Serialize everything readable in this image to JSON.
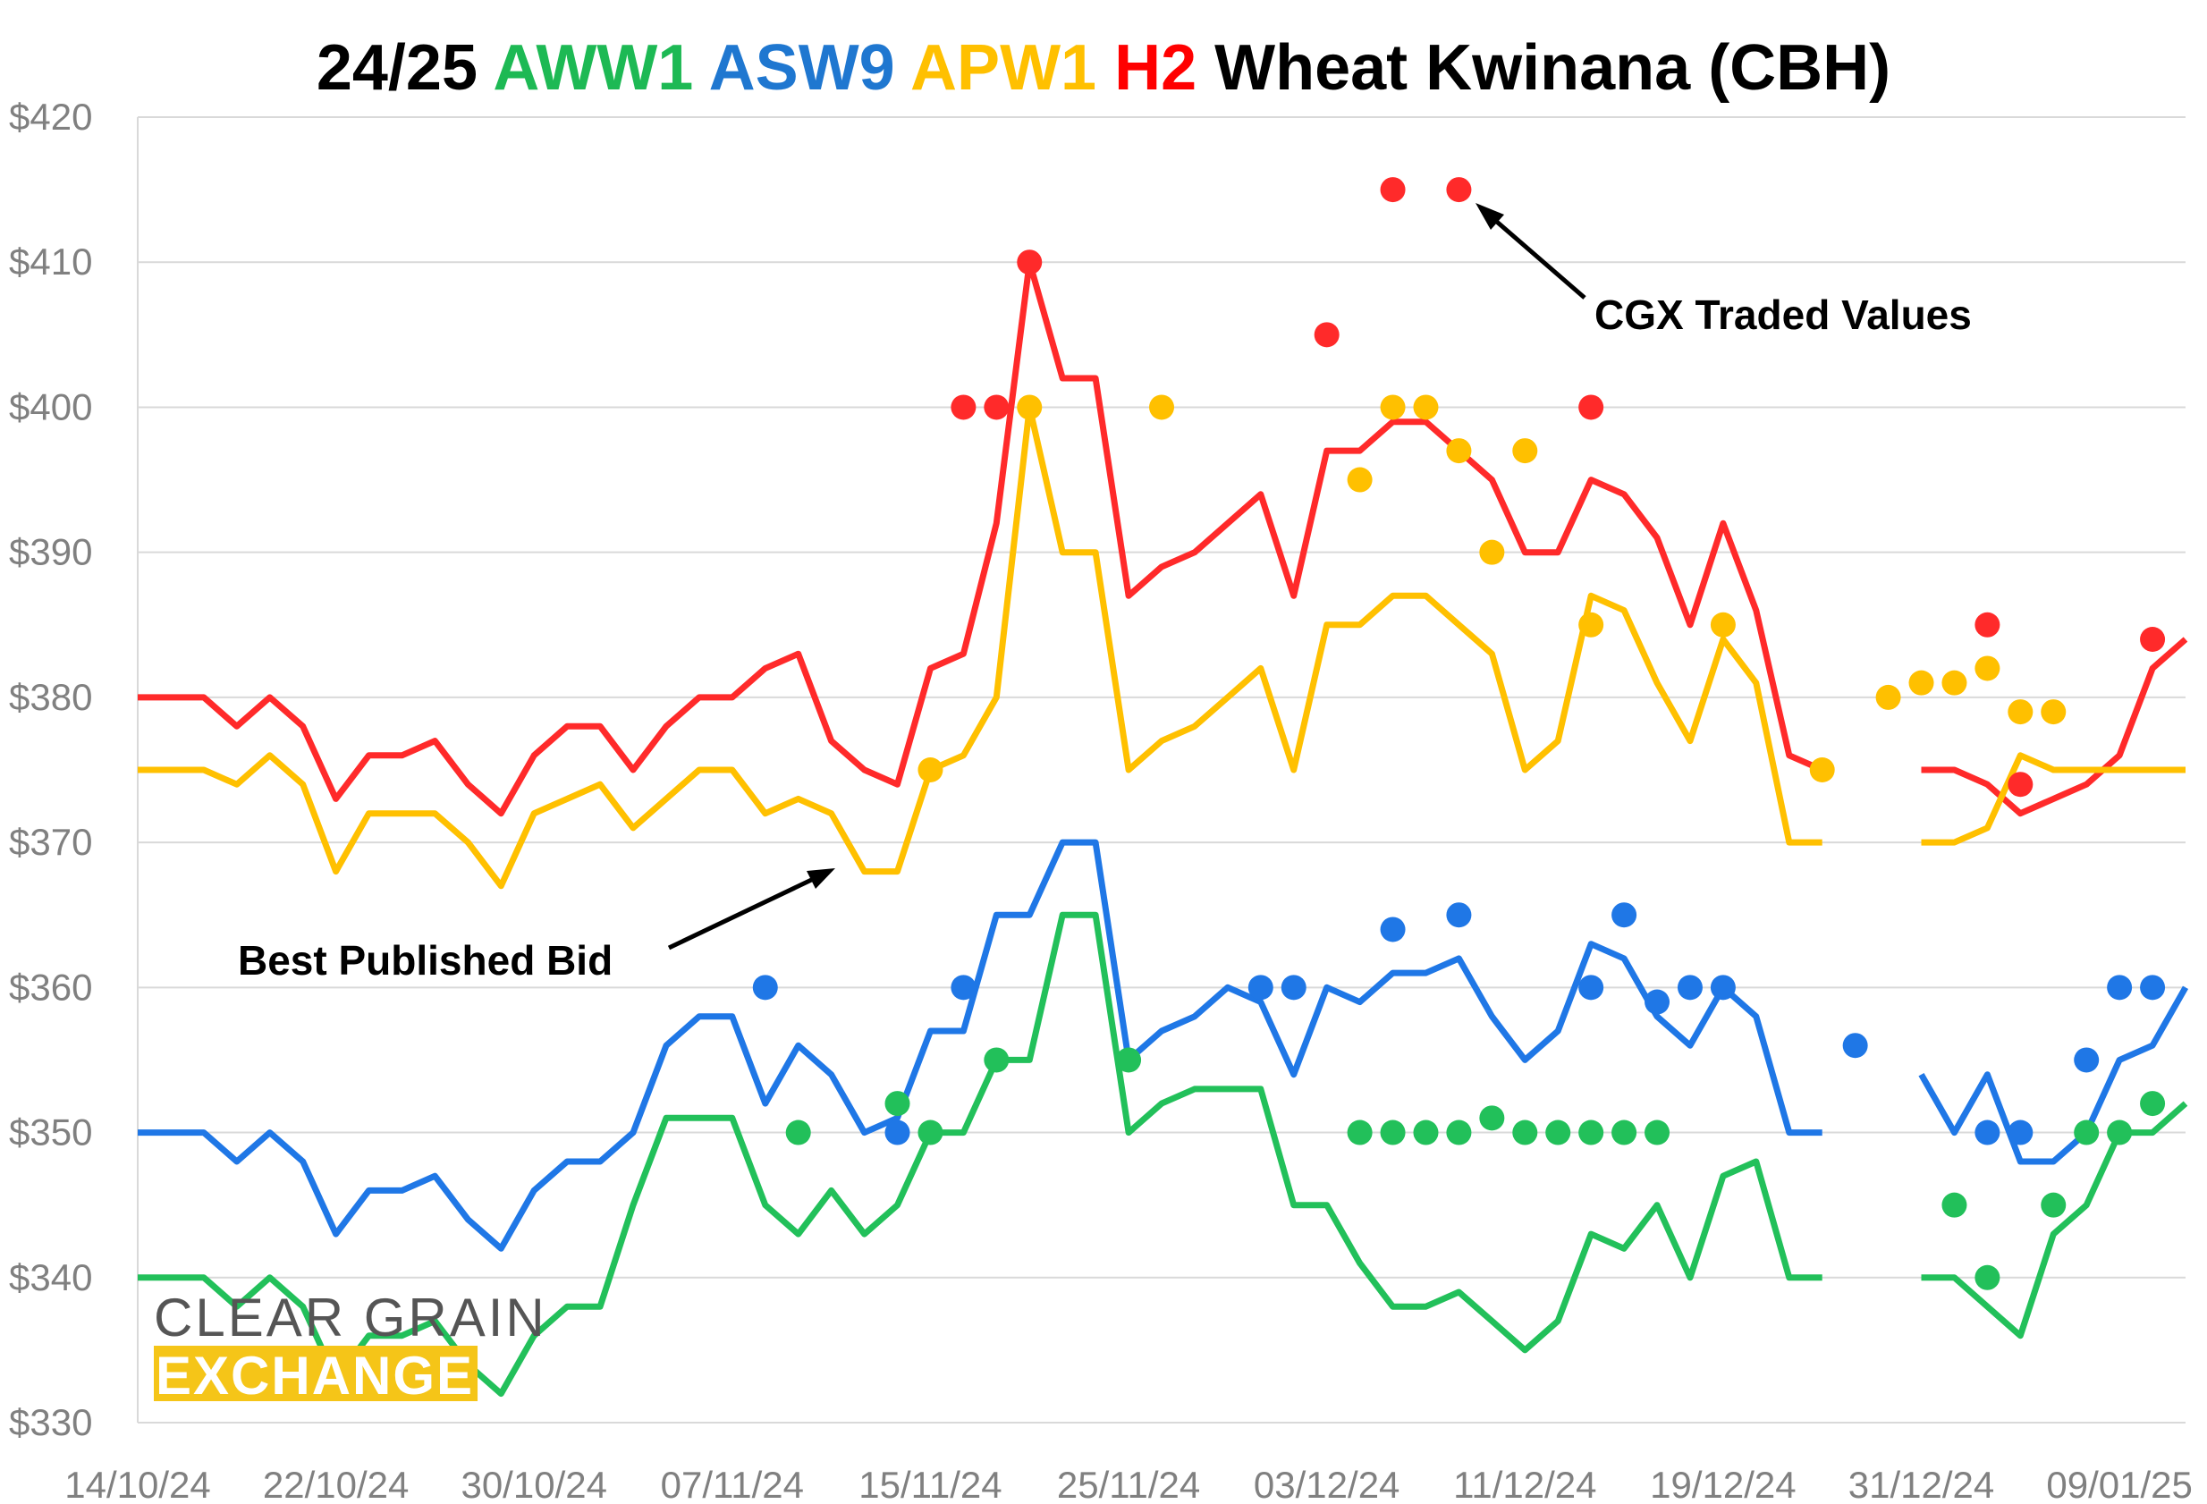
{
  "chart_data": {
    "type": "line",
    "title": {
      "segments": [
        {
          "text": "24/25 ",
          "color": "#000000"
        },
        {
          "text": "AWW1",
          "color": "#1db954"
        },
        {
          "text": " ",
          "color": "#000000"
        },
        {
          "text": "ASW9",
          "color": "#1f77d0"
        },
        {
          "text": " ",
          "color": "#000000"
        },
        {
          "text": "APW1",
          "color": "#ffc000"
        },
        {
          "text": " ",
          "color": "#000000"
        },
        {
          "text": "H2",
          "color": "#ff0000"
        },
        {
          "text": " Wheat Kwinana (CBH)",
          "color": "#000000"
        }
      ]
    },
    "y_axis": {
      "ylim": [
        330,
        420
      ],
      "ticks": [
        330,
        340,
        350,
        360,
        370,
        380,
        390,
        400,
        410,
        420
      ],
      "tick_labels": [
        "$330",
        "$340",
        "$350",
        "$360",
        "$370",
        "$380",
        "$390",
        "$400",
        "$410",
        "$420"
      ]
    },
    "x_axis": {
      "range": [
        0,
        62
      ],
      "tick_positions": [
        0,
        6,
        12,
        18,
        24,
        30,
        36,
        42,
        48,
        54,
        60
      ],
      "tick_labels": [
        "14/10/24",
        "22/10/24",
        "30/10/24",
        "07/11/24",
        "15/11/24",
        "25/11/24",
        "03/12/24",
        "11/12/24",
        "19/12/24",
        "31/12/24",
        "09/01/25"
      ]
    },
    "grid": true,
    "series": [
      {
        "name": "H2",
        "color": "#ff2a2a",
        "best_bid": [
          380,
          380,
          380,
          378,
          380,
          378,
          373,
          376,
          376,
          377,
          374,
          372,
          376,
          378,
          378,
          375,
          378,
          380,
          380,
          382,
          383,
          377,
          375,
          374,
          382,
          383,
          392,
          410,
          402,
          402,
          387,
          389,
          390,
          392,
          394,
          387,
          397,
          397,
          399,
          399,
          397,
          395,
          390,
          390,
          395,
          394,
          391,
          385,
          392,
          386,
          376,
          375,
          null,
          null,
          375,
          375,
          374,
          372,
          373,
          374,
          376,
          382,
          384
        ],
        "traded": [
          [
            25,
            400
          ],
          [
            26,
            400
          ],
          [
            27,
            410
          ],
          [
            36,
            405
          ],
          [
            38,
            415
          ],
          [
            40,
            415
          ],
          [
            44,
            400
          ],
          [
            56,
            385
          ],
          [
            57,
            374
          ],
          [
            61,
            384
          ]
        ]
      },
      {
        "name": "APW1",
        "color": "#ffc000",
        "best_bid": [
          375,
          375,
          375,
          374,
          376,
          374,
          368,
          372,
          372,
          372,
          370,
          367,
          372,
          373,
          374,
          371,
          373,
          375,
          375,
          372,
          373,
          372,
          368,
          368,
          375,
          376,
          380,
          400,
          390,
          390,
          375,
          377,
          378,
          380,
          382,
          375,
          385,
          385,
          387,
          387,
          385,
          383,
          375,
          377,
          387,
          386,
          381,
          377,
          384,
          381,
          370,
          370,
          null,
          null,
          370,
          370,
          371,
          376,
          375,
          375,
          375,
          375,
          375
        ],
        "traded": [
          [
            24,
            375
          ],
          [
            27,
            400
          ],
          [
            31,
            400
          ],
          [
            37,
            395
          ],
          [
            38,
            400
          ],
          [
            39,
            400
          ],
          [
            40,
            397
          ],
          [
            41,
            390
          ],
          [
            42,
            397
          ],
          [
            44,
            385
          ],
          [
            48,
            385
          ],
          [
            51,
            375
          ],
          [
            53,
            380
          ],
          [
            54,
            381
          ],
          [
            55,
            381
          ],
          [
            56,
            382
          ],
          [
            57,
            379
          ],
          [
            58,
            379
          ]
        ]
      },
      {
        "name": "ASW9",
        "color": "#1f77e6",
        "best_bid": [
          350,
          350,
          350,
          348,
          350,
          348,
          343,
          346,
          346,
          347,
          344,
          342,
          346,
          348,
          348,
          350,
          356,
          358,
          358,
          352,
          356,
          354,
          350,
          351,
          357,
          357,
          365,
          365,
          370,
          370,
          355,
          357,
          358,
          360,
          359,
          354,
          360,
          359,
          361,
          361,
          362,
          358,
          355,
          357,
          363,
          362,
          358,
          356,
          360,
          358,
          350,
          350,
          null,
          null,
          354,
          350,
          354,
          348,
          348,
          350,
          355,
          356,
          360
        ],
        "traded": [
          [
            19,
            360
          ],
          [
            23,
            350
          ],
          [
            25,
            360
          ],
          [
            34,
            360
          ],
          [
            35,
            360
          ],
          [
            38,
            364
          ],
          [
            40,
            365
          ],
          [
            44,
            360
          ],
          [
            45,
            365
          ],
          [
            46,
            359
          ],
          [
            47,
            360
          ],
          [
            48,
            360
          ],
          [
            52,
            356
          ],
          [
            56,
            350
          ],
          [
            57,
            350
          ],
          [
            59,
            355
          ],
          [
            60,
            360
          ],
          [
            61,
            360
          ]
        ]
      },
      {
        "name": "AWW1",
        "color": "#22c05a",
        "best_bid": [
          340,
          340,
          340,
          338,
          340,
          338,
          333,
          336,
          336,
          337,
          334,
          332,
          336,
          338,
          338,
          345,
          351,
          351,
          351,
          345,
          343,
          346,
          343,
          345,
          350,
          350,
          355,
          355,
          365,
          365,
          350,
          352,
          353,
          353,
          353,
          345,
          345,
          341,
          338,
          338,
          339,
          337,
          335,
          337,
          343,
          342,
          345,
          340,
          347,
          348,
          340,
          340,
          null,
          null,
          340,
          340,
          338,
          336,
          343,
          345,
          350,
          350,
          352
        ],
        "traded": [
          [
            20,
            350
          ],
          [
            23,
            352
          ],
          [
            24,
            350
          ],
          [
            26,
            355
          ],
          [
            30,
            355
          ],
          [
            37,
            350
          ],
          [
            38,
            350
          ],
          [
            39,
            350
          ],
          [
            40,
            350
          ],
          [
            41,
            351
          ],
          [
            42,
            350
          ],
          [
            43,
            350
          ],
          [
            44,
            350
          ],
          [
            45,
            350
          ],
          [
            46,
            350
          ],
          [
            55,
            345
          ],
          [
            56,
            340
          ],
          [
            58,
            345
          ],
          [
            59,
            350
          ],
          [
            60,
            350
          ],
          [
            61,
            352
          ]
        ]
      }
    ],
    "annotations": [
      {
        "text": "CGX Traded Values"
      },
      {
        "text": "Best Published Bid"
      }
    ]
  },
  "logo": {
    "line1": "CLEAR GRAIN",
    "line2": "EXCHANGE",
    "band_color": "#f5c518"
  }
}
